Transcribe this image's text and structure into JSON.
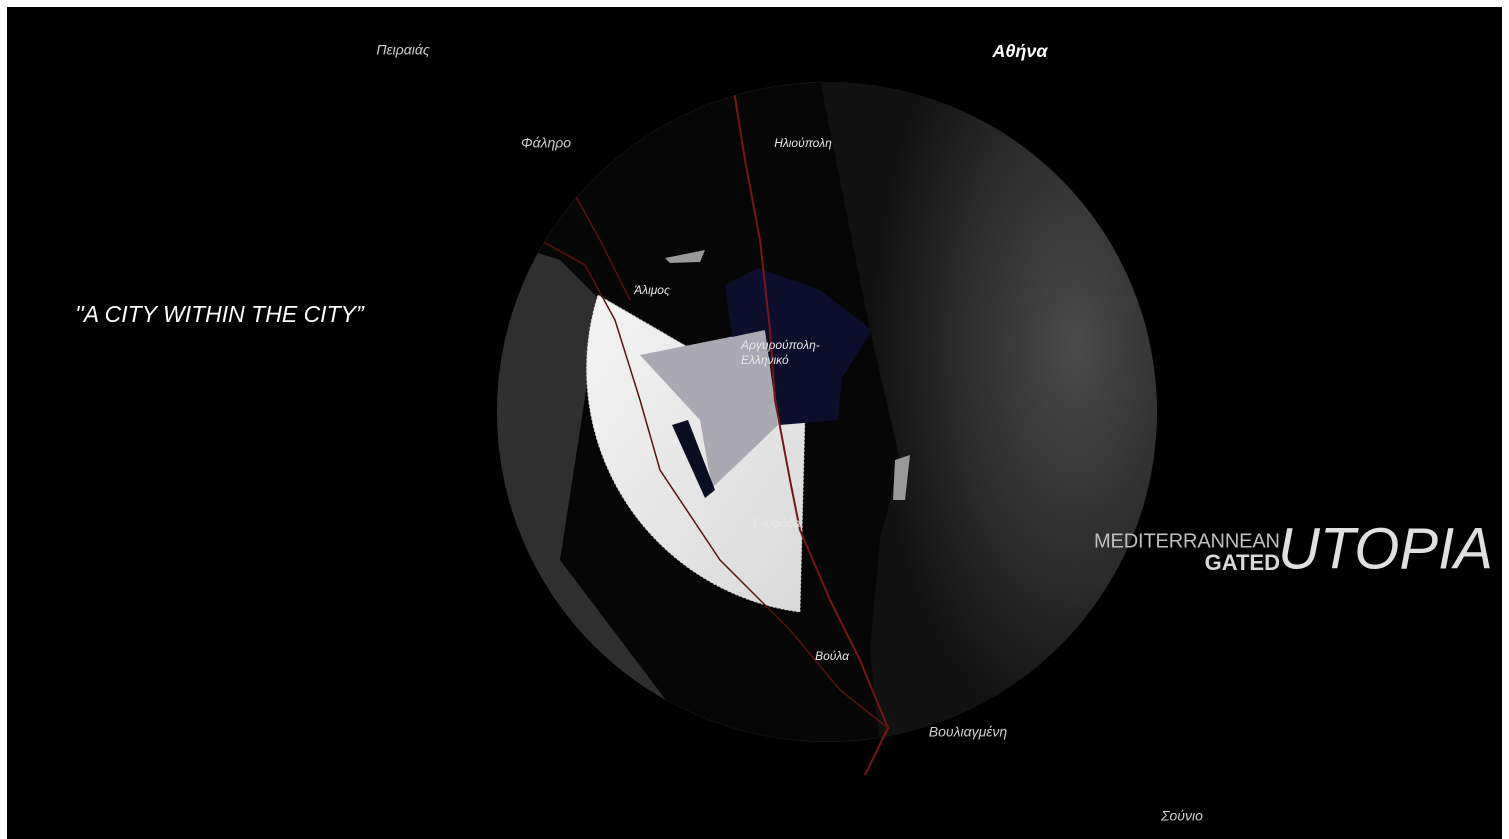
{
  "places": [
    "Πειραιάς",
    "Αθήνα",
    "Φάληρο",
    "Ηλιούπολη",
    "Άλιμος",
    [
      "Αργυρούπολη-",
      "Ελληνικό"
    ],
    "Γλυφάδα",
    "Βούλα",
    "Βουλιαγμένη",
    "Σούνιο"
  ],
  "quote": "''A CITY WITHIN THE CITY”",
  "title": {
    "line1": "MEDITERRANNEAN",
    "line2": "GATED",
    "main": "UTOPIA"
  }
}
